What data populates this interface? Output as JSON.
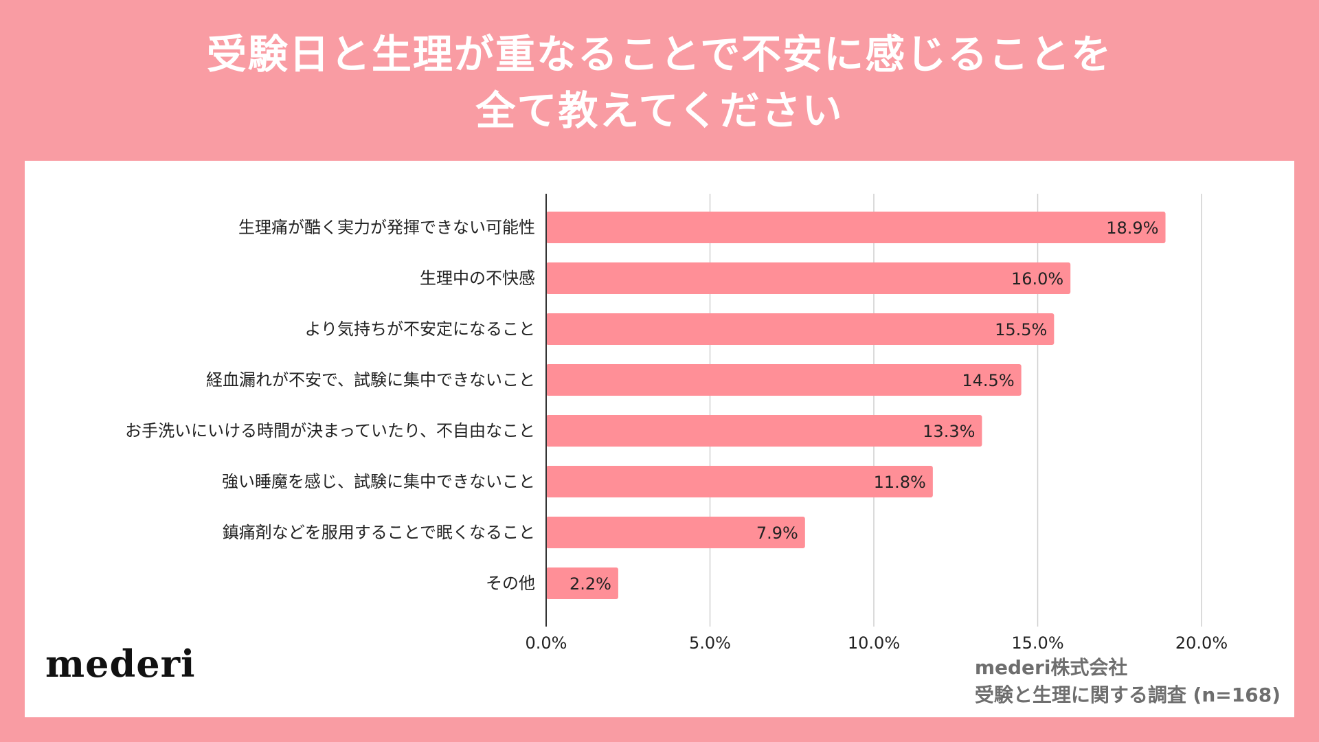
{
  "header": {
    "title_line1": "受験日と生理が重なることで不安に感じることを",
    "title_line2": "全て教えてください"
  },
  "brand": {
    "logo_text": "mederi"
  },
  "source": {
    "company": "mederi株式会社",
    "survey": "受験と生理に関する調査 (n=168)"
  },
  "colors": {
    "background": "#F99CA3",
    "bar": "#FF8F97",
    "panel": "#FFFFFF"
  },
  "chart_data": {
    "type": "bar",
    "orientation": "horizontal",
    "categories": [
      "生理痛が酷く実力が発揮できない可能性",
      "生理中の不快感",
      "より気持ちが不安定になること",
      "経血漏れが不安で、試験に集中できないこと",
      "お手洗いにいける時間が決まっていたり、不自由なこと",
      "強い睡魔を感じ、試験に集中できないこと",
      "鎮痛剤などを服用することで眠くなること",
      "その他"
    ],
    "values": [
      18.9,
      16.0,
      15.5,
      14.5,
      13.3,
      11.8,
      7.9,
      2.2
    ],
    "value_labels": [
      "18.9%",
      "16.0%",
      "15.5%",
      "14.5%",
      "13.3%",
      "11.8%",
      "7.9%",
      "2.2%"
    ],
    "xlim": [
      0,
      20
    ],
    "xticks": [
      0,
      5,
      10,
      15,
      20
    ],
    "xtick_labels": [
      "0.0%",
      "5.0%",
      "10.0%",
      "15.0%",
      "20.0%"
    ],
    "grid": "vertical",
    "legend": "none"
  }
}
